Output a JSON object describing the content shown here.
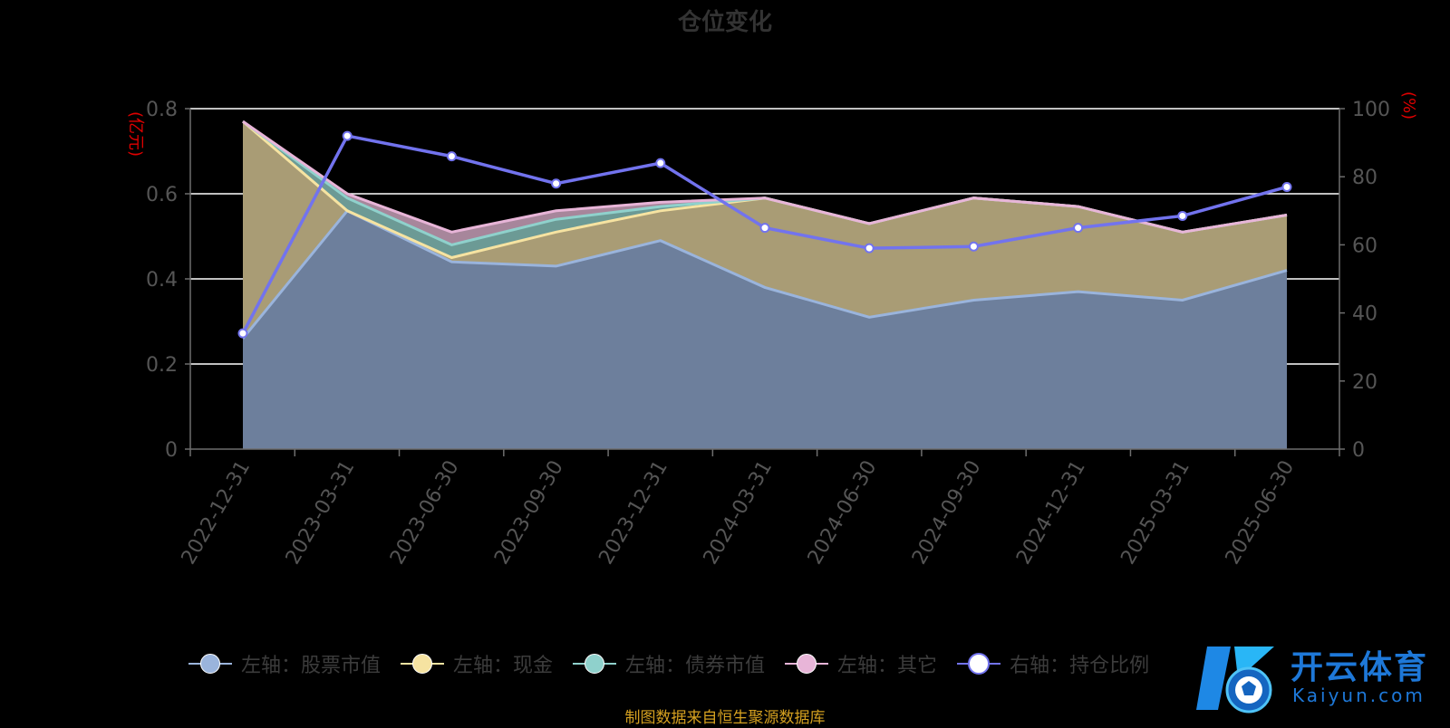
{
  "chart_data": {
    "type": "area",
    "title": "仓位变化",
    "left_axis_unit": "(亿元)",
    "right_axis_unit": "(%)",
    "categories": [
      "2022-12-31",
      "2023-03-31",
      "2023-06-30",
      "2023-09-30",
      "2023-12-31",
      "2024-03-31",
      "2024-06-30",
      "2024-09-30",
      "2024-12-31",
      "2025-03-31",
      "2025-06-30"
    ],
    "left_axis": {
      "min": 0,
      "max": 0.8,
      "ticks": [
        "0",
        "0.2",
        "0.4",
        "0.6",
        "0.8"
      ]
    },
    "right_axis": {
      "min": 0,
      "max": 100,
      "ticks": [
        "0",
        "20",
        "40",
        "60",
        "80",
        "100"
      ]
    },
    "stacked": true,
    "grid": true,
    "legend_position": "bottom",
    "series": [
      {
        "name": "左轴：股票市值",
        "axis": "left",
        "kind": "area",
        "color": "#9ab4dc",
        "fill": "#6d7f9c",
        "values": [
          0.26,
          0.56,
          0.44,
          0.43,
          0.49,
          0.38,
          0.31,
          0.35,
          0.37,
          0.35,
          0.42
        ]
      },
      {
        "name": "左轴：现金",
        "axis": "left",
        "kind": "area",
        "color": "#f6e3a1",
        "fill": "#a99c75",
        "values": [
          0.51,
          0.0,
          0.01,
          0.08,
          0.07,
          0.21,
          0.22,
          0.24,
          0.2,
          0.16,
          0.13
        ]
      },
      {
        "name": "左轴：债券市值",
        "axis": "left",
        "kind": "area",
        "color": "#8fd1cc",
        "fill": "#6c9a95",
        "values": [
          0.0,
          0.03,
          0.03,
          0.03,
          0.01,
          0.0,
          0.0,
          0.0,
          0.0,
          0.0,
          0.0
        ]
      },
      {
        "name": "左轴：其它",
        "axis": "left",
        "kind": "area",
        "color": "#e8b5d8",
        "fill": "#a7869b",
        "values": [
          0.0,
          0.01,
          0.03,
          0.02,
          0.01,
          0.0,
          0.0,
          0.0,
          0.0,
          0.0,
          0.0
        ]
      },
      {
        "name": "右轴：持仓比例",
        "axis": "right",
        "kind": "line",
        "color": "#7273ee",
        "values": [
          34,
          92,
          86,
          78,
          84,
          65,
          59,
          59.5,
          65,
          68.5,
          77
        ]
      }
    ]
  },
  "source_note": "制图数据来自恒生聚源数据库",
  "watermark": {
    "brand": "开云体育",
    "sub": "Kaiyun.com"
  }
}
